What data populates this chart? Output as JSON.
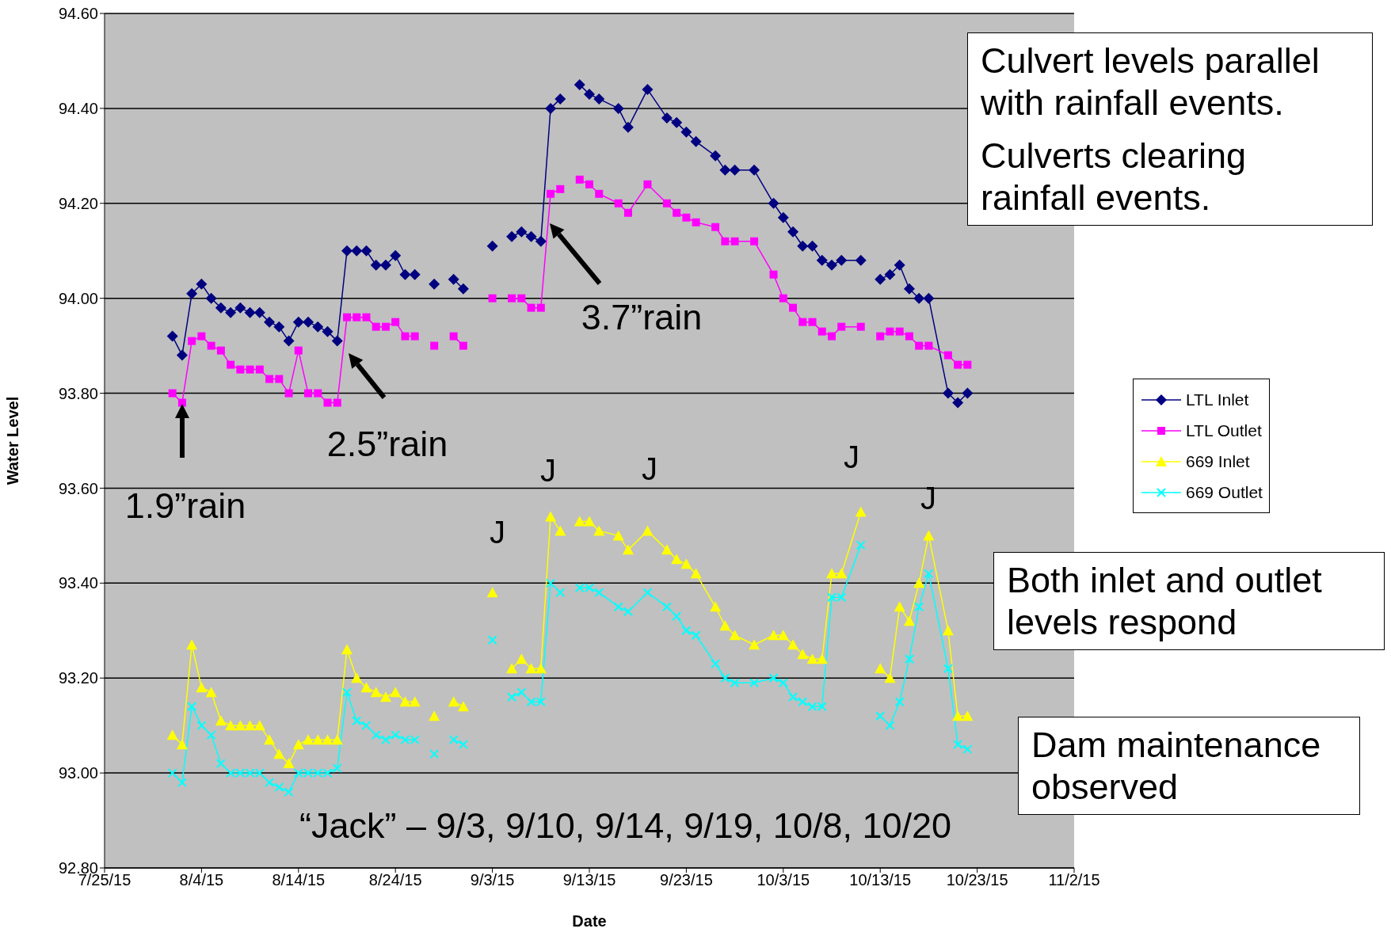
{
  "chart_data": {
    "type": "line",
    "xlabel": "Date",
    "ylabel": "Water Level",
    "x": [
      "--08-01",
      "--08-02",
      "--08-03",
      "--08-04",
      "--08-05",
      "--08-06",
      "--08-07",
      "--08-08",
      "--08-09",
      "--08-10",
      "--08-11",
      "--08-12",
      "--08-13",
      "--08-14",
      "--08-15",
      "--08-16",
      "--08-17",
      "--08-18",
      "--08-19",
      "--08-20",
      "--08-21",
      "--08-22",
      "--08-23",
      "--08-24",
      "--08-25",
      "--08-26",
      "--08-27",
      "--08-28",
      "--08-29",
      "--08-30",
      "--08-31",
      "--09-01",
      "--09-03",
      "--09-04",
      "--09-05",
      "--09-06",
      "--09-07",
      "--09-08",
      "--09-09",
      "--09-10",
      "--09-11",
      "--09-12",
      "--09-13",
      "--09-14",
      "--09-16",
      "--09-17",
      "--09-19",
      "--09-21",
      "--09-22",
      "--09-23",
      "--09-24",
      "--09-26",
      "--09-27",
      "--09-28",
      "--09-30",
      "--10-02",
      "--10-03",
      "--10-04",
      "--10-05",
      "--10-06",
      "--10-07",
      "--10-08",
      "--10-09",
      "--10-11",
      "--10-12",
      "--10-13",
      "--10-14",
      "--10-15",
      "--10-16",
      "--10-17",
      "--10-18",
      "--10-20",
      "--10-21",
      "--10-22"
    ],
    "series": [
      {
        "name": "LTL Inlet",
        "color": "#000080",
        "marker": "diamond",
        "values": [
          93.92,
          93.88,
          94.01,
          94.03,
          94.0,
          93.98,
          93.97,
          93.98,
          93.97,
          93.97,
          93.95,
          93.94,
          93.91,
          93.95,
          93.95,
          93.94,
          93.93,
          93.91,
          94.1,
          94.1,
          94.1,
          94.07,
          94.07,
          94.09,
          94.05,
          94.05,
          null,
          94.03,
          null,
          94.04,
          94.02,
          null,
          94.11,
          null,
          94.13,
          94.14,
          94.13,
          94.12,
          94.4,
          94.42,
          null,
          94.45,
          94.43,
          94.42,
          94.4,
          94.36,
          94.44,
          94.38,
          94.37,
          94.35,
          94.33,
          94.3,
          94.27,
          94.27,
          94.27,
          94.2,
          94.17,
          94.14,
          94.11,
          94.11,
          94.08,
          94.07,
          94.08,
          94.08,
          null,
          94.04,
          94.05,
          94.07,
          94.02,
          94.0,
          94.0,
          93.8,
          93.78,
          93.8
        ]
      },
      {
        "name": "LTL Outlet",
        "color": "#ff00ff",
        "marker": "square",
        "values": [
          93.8,
          93.78,
          93.91,
          93.92,
          93.9,
          93.89,
          93.86,
          93.85,
          93.85,
          93.85,
          93.83,
          93.83,
          93.8,
          93.89,
          93.8,
          93.8,
          93.78,
          93.78,
          93.96,
          93.96,
          93.96,
          93.94,
          93.94,
          93.95,
          93.92,
          93.92,
          null,
          93.9,
          null,
          93.92,
          93.9,
          null,
          94.0,
          null,
          94.0,
          94.0,
          93.98,
          93.98,
          94.22,
          94.23,
          null,
          94.25,
          94.24,
          94.22,
          94.2,
          94.18,
          94.24,
          94.2,
          94.18,
          94.17,
          94.16,
          94.15,
          94.12,
          94.12,
          94.12,
          94.05,
          94.0,
          93.98,
          93.95,
          93.95,
          93.93,
          93.92,
          93.94,
          93.94,
          null,
          93.92,
          93.93,
          93.93,
          93.92,
          93.9,
          93.9,
          93.88,
          93.86,
          93.86
        ]
      },
      {
        "name": "669 Inlet",
        "color": "#ffff00",
        "marker": "triangle",
        "values": [
          93.08,
          93.06,
          93.27,
          93.18,
          93.17,
          93.11,
          93.1,
          93.1,
          93.1,
          93.1,
          93.07,
          93.04,
          93.02,
          93.06,
          93.07,
          93.07,
          93.07,
          93.07,
          93.26,
          93.2,
          93.18,
          93.17,
          93.16,
          93.17,
          93.15,
          93.15,
          null,
          93.12,
          null,
          93.15,
          93.14,
          null,
          93.38,
          null,
          93.22,
          93.24,
          93.22,
          93.22,
          93.54,
          93.51,
          null,
          93.53,
          93.53,
          93.51,
          93.5,
          93.47,
          93.51,
          93.47,
          93.45,
          93.44,
          93.42,
          93.35,
          93.31,
          93.29,
          93.27,
          93.29,
          93.29,
          93.27,
          93.25,
          93.24,
          93.24,
          93.42,
          93.42,
          93.55,
          null,
          93.22,
          93.2,
          93.35,
          93.32,
          93.4,
          93.5,
          93.3,
          93.12,
          93.12
        ]
      },
      {
        "name": "669 Outlet",
        "color": "#00ffff",
        "marker": "cross",
        "values": [
          93.0,
          92.98,
          93.14,
          93.1,
          93.08,
          93.02,
          93.0,
          93.0,
          93.0,
          93.0,
          92.98,
          92.97,
          92.96,
          93.0,
          93.0,
          93.0,
          93.0,
          93.01,
          93.17,
          93.11,
          93.1,
          93.08,
          93.07,
          93.08,
          93.07,
          93.07,
          null,
          93.04,
          null,
          93.07,
          93.06,
          null,
          93.28,
          null,
          93.16,
          93.17,
          93.15,
          93.15,
          93.4,
          93.38,
          null,
          93.39,
          93.39,
          93.38,
          93.35,
          93.34,
          93.38,
          93.35,
          93.33,
          93.3,
          93.29,
          93.23,
          93.2,
          93.19,
          93.19,
          93.2,
          93.19,
          93.16,
          93.15,
          93.14,
          93.14,
          93.37,
          93.37,
          93.48,
          null,
          93.12,
          93.1,
          93.15,
          93.24,
          93.35,
          93.42,
          93.22,
          93.06,
          93.05
        ]
      }
    ],
    "xlim": [
      "--07-25",
      "--11-02"
    ],
    "xticks": [
      {
        "value": "--07-25",
        "label": "7/25/15"
      },
      {
        "value": "--08-04",
        "label": "8/4/15"
      },
      {
        "value": "--08-14",
        "label": "8/14/15"
      },
      {
        "value": "--08-24",
        "label": "8/24/15"
      },
      {
        "value": "--09-03",
        "label": "9/3/15"
      },
      {
        "value": "--09-13",
        "label": "9/13/15"
      },
      {
        "value": "--09-23",
        "label": "9/23/15"
      },
      {
        "value": "--10-03",
        "label": "10/3/15"
      },
      {
        "value": "--10-13",
        "label": "10/13/15"
      },
      {
        "value": "--10-23",
        "label": "10/23/15"
      },
      {
        "value": "--11-02",
        "label": "11/2/15"
      }
    ],
    "ylim": [
      92.8,
      94.6
    ],
    "yticks": [
      {
        "value": 92.8,
        "label": "92.80"
      },
      {
        "value": 93,
        "label": "93.00"
      },
      {
        "value": 93.2,
        "label": "93.20"
      },
      {
        "value": 93.4,
        "label": "93.40"
      },
      {
        "value": 93.6,
        "label": "93.60"
      },
      {
        "value": 93.8,
        "label": "93.80"
      },
      {
        "value": 94,
        "label": "94.00"
      },
      {
        "value": 94.2,
        "label": "94.20"
      },
      {
        "value": 94.4,
        "label": "94.40"
      },
      {
        "value": 94.6,
        "label": "94.60"
      }
    ],
    "grid": "y",
    "legend": "right",
    "annotations": [
      "1.9”rain",
      "2.5”rain",
      "3.7”rain",
      "J",
      "J",
      "J",
      "J",
      "J",
      "“Jack” – 9/3, 9/10, 9/14, 9/19, 10/8, 10/20",
      "Culvert levels parallel with rainfall events.",
      "Culverts clearing rainfall events.",
      "Both inlet and outlet levels respond",
      "Dam maintenance observed"
    ]
  }
}
